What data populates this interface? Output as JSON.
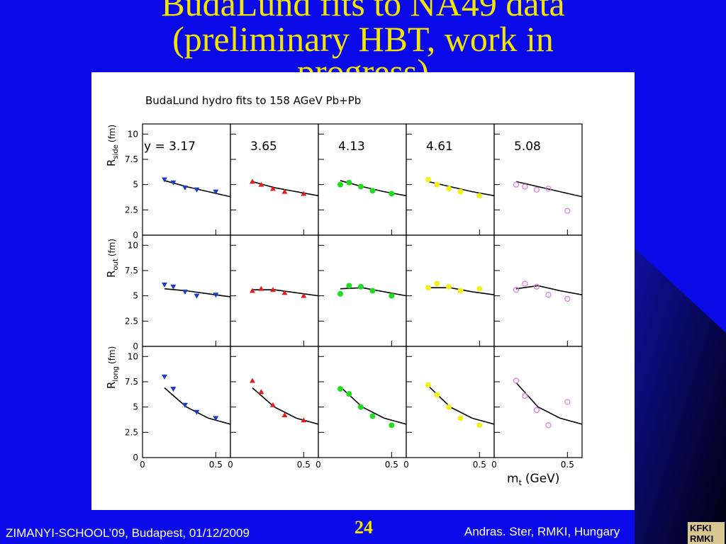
{
  "slide": {
    "title": [
      "BudaLund fits to NA49 data",
      "(preliminary HBT, work in",
      "progress)"
    ],
    "footer_left": "ZIMANYI-SCHOOL’09, Budapest, 01/12/2009",
    "page_number": "24",
    "footer_right": "Andras. Ster,  RMKI, Hungary",
    "logo": [
      "KFKI",
      "RMKI"
    ]
  },
  "chart_data": {
    "type": "scatter",
    "title": "BudaLund hydro fits to 158 AGeV Pb+Pb",
    "xlabel": {
      "main": "m",
      "sub": "t",
      "unit": "(GeV)"
    },
    "xlim": [
      0,
      0.6
    ],
    "xticks": [
      0,
      0.5
    ],
    "ylim": [
      0,
      11
    ],
    "yticks": [
      0,
      2.5,
      5,
      7.5,
      10
    ],
    "x": [
      0.15,
      0.21,
      0.29,
      0.37,
      0.5
    ],
    "fit_x": [
      0.15,
      0.3,
      0.45,
      0.6
    ],
    "columns": [
      {
        "label": "y = 3.17",
        "color": "#1a3cc8",
        "marker": "triangle-down"
      },
      {
        "label": "3.65",
        "color": "#e02020",
        "marker": "triangle-up"
      },
      {
        "label": "4.13",
        "color": "#20dd20",
        "marker": "circle"
      },
      {
        "label": "4.61",
        "color": "#f2f020",
        "marker": "circle"
      },
      {
        "label": "5.08",
        "color": "#e07ce0",
        "marker": "open-circle"
      }
    ],
    "rows": [
      {
        "ylabel": {
          "main": "R",
          "sub": "side",
          "unit": "(fm)"
        },
        "series": [
          {
            "values": [
              5.5,
              5.2,
              4.7,
              4.5,
              4.3
            ],
            "fit": [
              5.4,
              4.8,
              4.3,
              3.8
            ]
          },
          {
            "values": [
              5.3,
              5.0,
              4.6,
              4.3,
              4.1
            ],
            "fit": [
              5.3,
              4.7,
              4.3,
              3.9
            ]
          },
          {
            "values": [
              5.0,
              5.2,
              4.8,
              4.4,
              4.1
            ],
            "fit": [
              5.4,
              4.8,
              4.3,
              3.9
            ]
          },
          {
            "values": [
              5.5,
              5.0,
              4.6,
              4.3,
              3.9
            ],
            "fit": [
              5.3,
              4.8,
              4.3,
              3.9
            ]
          },
          {
            "values": [
              5.0,
              4.8,
              4.5,
              4.6,
              2.4
            ],
            "fit": [
              5.3,
              4.8,
              4.3,
              3.8
            ]
          }
        ]
      },
      {
        "ylabel": {
          "main": "R",
          "sub": "out",
          "unit": "(fm)"
        },
        "series": [
          {
            "values": [
              6.1,
              5.9,
              5.4,
              5.0,
              5.1
            ],
            "fit": [
              5.7,
              5.5,
              5.2,
              4.9
            ]
          },
          {
            "values": [
              5.5,
              5.7,
              5.6,
              5.3,
              5.0
            ],
            "fit": [
              5.6,
              5.6,
              5.3,
              5.0
            ]
          },
          {
            "values": [
              5.2,
              6.0,
              5.9,
              5.5,
              5.0
            ],
            "fit": [
              5.7,
              5.8,
              5.4,
              5.0
            ]
          },
          {
            "values": [
              5.8,
              6.2,
              5.9,
              5.5,
              5.7
            ],
            "fit": [
              5.8,
              5.8,
              5.4,
              5.1
            ]
          },
          {
            "values": [
              5.6,
              6.2,
              5.9,
              5.1,
              4.7
            ],
            "fit": [
              5.7,
              6.0,
              5.5,
              5.1
            ]
          }
        ]
      },
      {
        "ylabel": {
          "main": "R",
          "sub": "long",
          "unit": "(fm)"
        },
        "series": [
          {
            "values": [
              8.0,
              6.8,
              5.2,
              4.5,
              3.9
            ],
            "fit": [
              6.9,
              5.0,
              3.9,
              3.3
            ]
          },
          {
            "values": [
              7.6,
              6.5,
              5.2,
              4.2,
              3.7
            ],
            "fit": [
              6.9,
              5.0,
              3.9,
              3.3
            ]
          },
          {
            "values": [
              6.8,
              6.3,
              5.0,
              4.1,
              3.2
            ],
            "fit": [
              7.0,
              5.0,
              3.9,
              3.3
            ]
          },
          {
            "values": [
              7.2,
              6.2,
              5.0,
              3.9,
              3.2
            ],
            "fit": [
              7.1,
              5.0,
              3.9,
              3.3
            ]
          },
          {
            "values": [
              7.6,
              6.1,
              4.7,
              3.2,
              5.5
            ],
            "fit": [
              7.4,
              5.0,
              3.9,
              3.3
            ]
          }
        ]
      }
    ]
  }
}
